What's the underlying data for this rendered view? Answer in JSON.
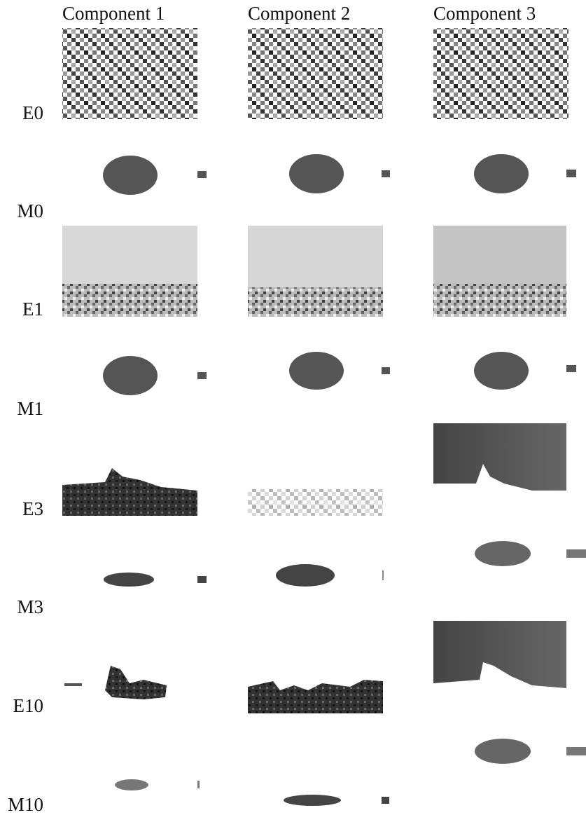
{
  "columns": [
    "Component 1",
    "Component 2",
    "Component 3"
  ],
  "rows": [
    "E0",
    "M0",
    "E1",
    "M1",
    "E3",
    "M3",
    "E10",
    "M10"
  ]
}
